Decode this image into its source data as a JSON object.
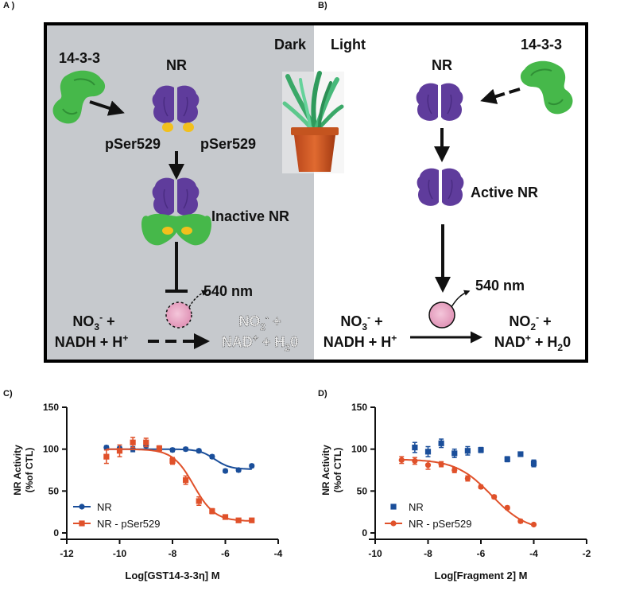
{
  "panels": {
    "a": {
      "label": "A )",
      "condition": "Dark",
      "protein_1433": "14-3-3",
      "nr": "NR",
      "pser_left": "pSer529",
      "pser_right": "pSer529",
      "inactive": "Inactive NR",
      "wavelength": "540 nm",
      "substrate_1": "NO",
      "substrate_1_sub": "3",
      "substrate_1_sup": "-",
      "substrate_1_plus": " +",
      "substrate_2": "NADH + H",
      "substrate_2_sup": "+",
      "product_1": "NO",
      "product_1_sub": "2",
      "product_1_sup": "-",
      "product_1_plus": " +",
      "product_2": "NAD",
      "product_2_sup": "+",
      "product_2_tail": " + H",
      "product_2_sub": "2",
      "product_2_end": "0"
    },
    "b": {
      "label": "B)",
      "condition": "Light",
      "protein_1433": "14-3-3",
      "nr": "NR",
      "active": "Active NR",
      "wavelength": "540 nm",
      "substrate_1": "NO",
      "substrate_1_sub": "3",
      "substrate_1_sup": "-",
      "substrate_1_plus": " +",
      "substrate_2": "NADH + H",
      "substrate_2_sup": "+",
      "product_1": "NO",
      "product_1_sub": "2",
      "product_1_sup": "-",
      "product_1_plus": " +",
      "product_2": "NAD",
      "product_2_sup": "+",
      "product_2_tail": " + H",
      "product_2_sub": "2",
      "product_2_end": "0"
    }
  },
  "colors": {
    "dark_bg": "#c6c9cd",
    "nr_purple": "#5f3c9c",
    "protein_green": "#46b84a",
    "phospho_yellow": "#f2c01c",
    "pink": "#e8a0bf",
    "nr_series": "#1a4e9a",
    "ser_series": "#e0512a"
  },
  "chart_data": [
    {
      "panel_label": "C)",
      "type": "scatter",
      "title": "",
      "xlabel": "Log[GST14-3-3η] M",
      "ylabel_line1": "NR Activity",
      "ylabel_line2": "(%of CTL)",
      "xlim": [
        -12,
        -4
      ],
      "ylim": [
        0,
        150
      ],
      "xticks": [
        -12,
        -10,
        -8,
        -6,
        -4
      ],
      "yticks": [
        0,
        50,
        100,
        150
      ],
      "legend_position": "bottom-left",
      "series": [
        {
          "name": "NR",
          "marker": "circle",
          "color": "#1a4e9a",
          "x": [
            -10.5,
            -10.0,
            -9.5,
            -9.0,
            -8.5,
            -8.0,
            -7.5,
            -7.0,
            -6.5,
            -6.0,
            -5.5,
            -5.0
          ],
          "y": [
            102,
            101,
            100,
            104,
            100,
            99,
            100,
            98,
            91,
            74,
            75,
            80
          ],
          "err": [
            2,
            2,
            3,
            2,
            2,
            2,
            2,
            2,
            2,
            2,
            2,
            2
          ],
          "fit": {
            "top": 100,
            "bottom": 76,
            "logec50": -6.4,
            "hill": 1.5
          }
        },
        {
          "name": "NR - pSer529",
          "marker": "square",
          "color": "#e0512a",
          "x": [
            -10.5,
            -10.0,
            -9.5,
            -9.0,
            -8.5,
            -8.0,
            -7.5,
            -7.0,
            -6.5,
            -6.0,
            -5.5,
            -5.0
          ],
          "y": [
            91,
            98,
            108,
            108,
            101,
            86,
            63,
            38,
            26,
            19,
            15,
            15
          ],
          "err": [
            8,
            7,
            6,
            5,
            3,
            4,
            5,
            5,
            3,
            2,
            2,
            1
          ],
          "fit": {
            "top": 100,
            "bottom": 14,
            "logec50": -7.2,
            "hill": 1.1
          }
        }
      ]
    },
    {
      "panel_label": "D)",
      "type": "scatter",
      "title": "",
      "xlabel": "Log[Fragment 2] M",
      "ylabel_line1": "NR Activity",
      "ylabel_line2": "(%of CTL)",
      "xlim": [
        -10,
        -2
      ],
      "ylim": [
        0,
        150
      ],
      "xticks": [
        -10,
        -8,
        -6,
        -4,
        -2
      ],
      "yticks": [
        0,
        50,
        100,
        150
      ],
      "legend_position": "bottom-left",
      "series": [
        {
          "name": "NR",
          "marker": "square",
          "color": "#1a4e9a",
          "x": [
            -8.5,
            -8.0,
            -7.5,
            -7.0,
            -6.5,
            -6.0,
            -5.0,
            -4.5,
            -4.0
          ],
          "y": [
            102,
            97,
            107,
            95,
            98,
            99,
            88,
            94,
            83
          ],
          "err": [
            6,
            6,
            5,
            5,
            5,
            3,
            3,
            2,
            4
          ],
          "fit": null
        },
        {
          "name": "NR - pSer529",
          "marker": "circle",
          "color": "#e0512a",
          "x": [
            -9.0,
            -8.5,
            -8.0,
            -7.5,
            -7.0,
            -6.5,
            -6.0,
            -5.5,
            -5.0,
            -4.5,
            -4.0
          ],
          "y": [
            87,
            86,
            81,
            82,
            75,
            65,
            55,
            43,
            30,
            14,
            10
          ],
          "err": [
            4,
            4,
            5,
            3,
            3,
            3,
            2,
            2,
            2,
            2,
            1
          ],
          "fit": {
            "top": 88,
            "bottom": 2,
            "logec50": -5.6,
            "hill": 0.65
          }
        }
      ]
    }
  ]
}
